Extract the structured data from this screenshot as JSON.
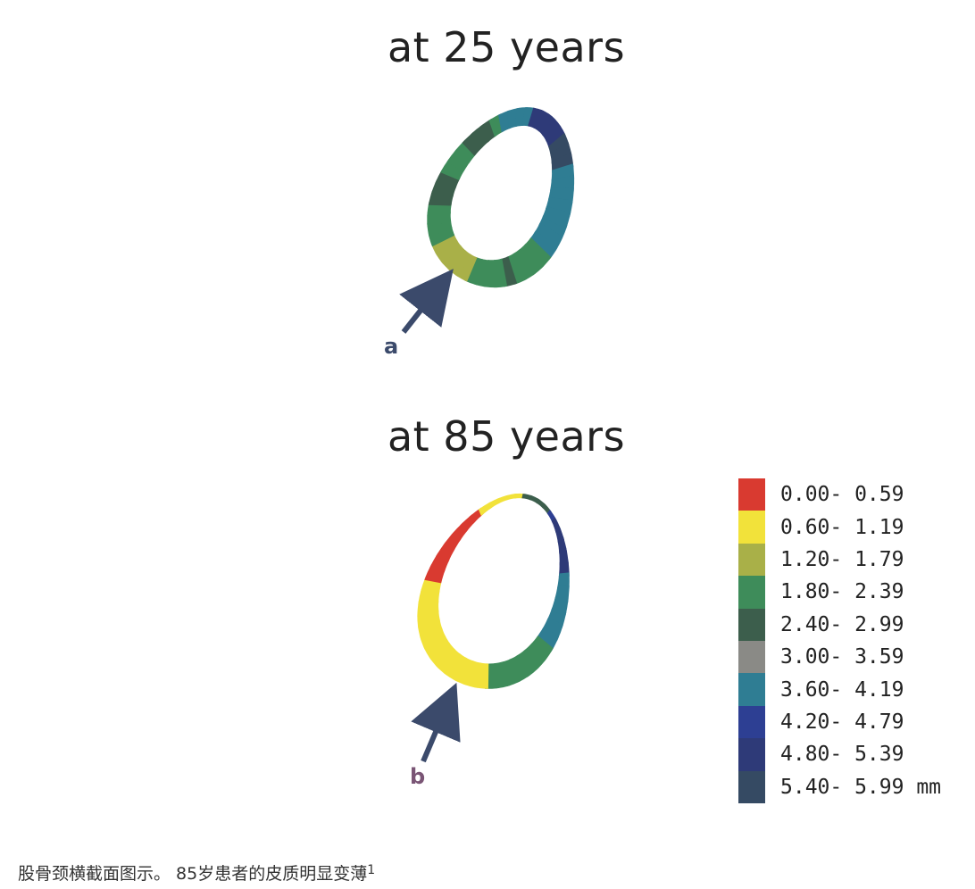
{
  "figure": {
    "title_top": "at 25 years",
    "title_bottom": "at 85 years",
    "label_a": "a",
    "label_b": "b"
  },
  "colors": {
    "c0": "#d93a30",
    "c1": "#f2e23a",
    "c2": "#a9b048",
    "c3": "#3e8c5a",
    "c4": "#3c5e4c",
    "c5": "#8a8a86",
    "c6": "#2f7d93",
    "c7": "#2d3f93",
    "c8": "#2e3a78",
    "c9": "#354a63",
    "arrow_a": "#3b4a6b",
    "arrow_b": "#3b4a6b"
  },
  "legend": {
    "items": [
      {
        "label": "0.00- 0.59",
        "color": "#d93a30"
      },
      {
        "label": "0.60- 1.19",
        "color": "#f2e23a"
      },
      {
        "label": "1.20- 1.79",
        "color": "#a9b048"
      },
      {
        "label": "1.80- 2.39",
        "color": "#3e8c5a"
      },
      {
        "label": "2.40- 2.99",
        "color": "#3c5e4c"
      },
      {
        "label": "3.00- 3.59",
        "color": "#8a8a86"
      },
      {
        "label": "3.60- 4.19",
        "color": "#2f7d93"
      },
      {
        "label": "4.20- 4.79",
        "color": "#2d3f93"
      },
      {
        "label": "4.80- 5.39",
        "color": "#2e3a78"
      },
      {
        "label": "5.40- 5.99 mm",
        "color": "#354a63"
      }
    ]
  },
  "sections": {
    "top_segments": [
      "c6",
      "c6",
      "c6",
      "c3",
      "c3",
      "c3",
      "c3",
      "c4",
      "c3",
      "c3",
      "c3",
      "c3",
      "c2",
      "c2",
      "c2",
      "c2",
      "c2",
      "c3",
      "c3",
      "c3",
      "c3",
      "c4",
      "c4",
      "c4",
      "c3",
      "c3",
      "c3",
      "c4",
      "c4",
      "c4",
      "c3",
      "c6",
      "c6",
      "c6",
      "c6",
      "c8",
      "c8",
      "c8",
      "c8",
      "c8",
      "c9",
      "c9",
      "c9",
      "c6",
      "c6",
      "c6",
      "c6",
      "c6"
    ],
    "bottom_segments": [
      "c6",
      "c6",
      "c6",
      "c3",
      "c3",
      "c3",
      "c3",
      "c3",
      "c3",
      "c3",
      "c1",
      "c1",
      "c1",
      "c1",
      "c1",
      "c1",
      "c1",
      "c1",
      "c1",
      "c1",
      "c1",
      "c1",
      "c1",
      "c0",
      "c0",
      "c0",
      "c0",
      "c0",
      "c0",
      "c0",
      "c1",
      "c1",
      "c1",
      "c1",
      "c1",
      "c4",
      "c4",
      "c4",
      "c4",
      "c7",
      "c8",
      "c8",
      "c8",
      "c8",
      "c8",
      "c6",
      "c6",
      "c6"
    ]
  },
  "caption": {
    "text": "股骨颈横截面图示。 85岁患者的皮质明显变薄",
    "sup": "1"
  }
}
